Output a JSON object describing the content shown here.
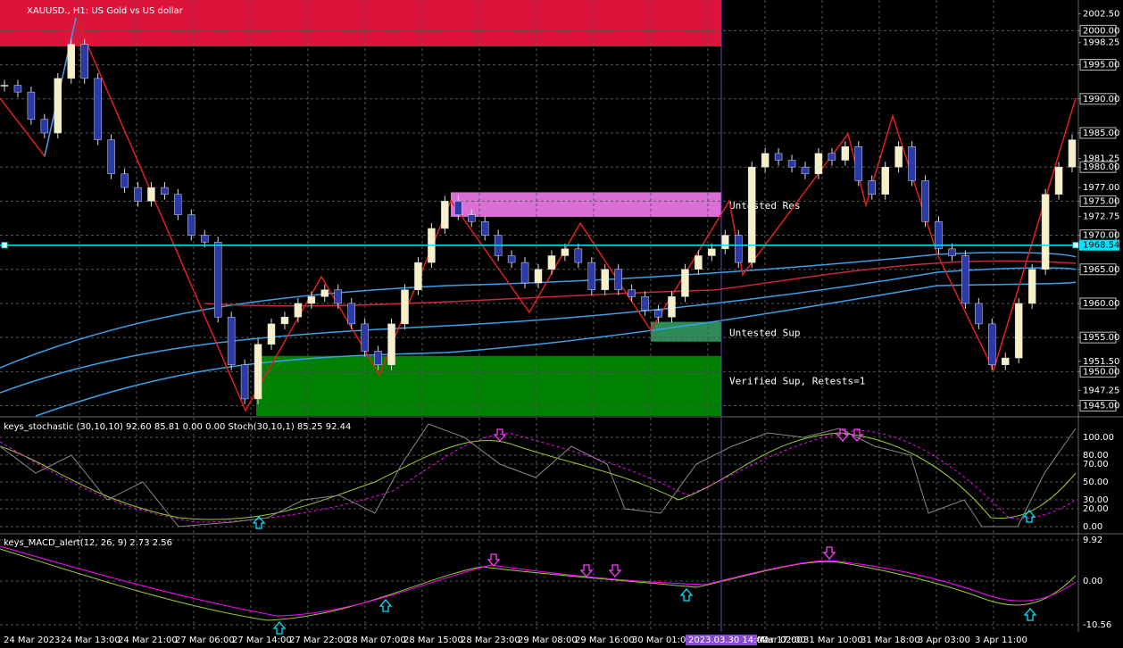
{
  "chart_data": {
    "type": "candlestick",
    "title": "XAUUSD., H1: US Gold vs US dollar",
    "closes": [
      1992,
      1991,
      1987,
      1985,
      1993,
      1998,
      1993,
      1984,
      1979,
      1977,
      1975,
      1977,
      1976,
      1973,
      1970,
      1969,
      1958,
      1951,
      1946,
      1954,
      1957,
      1958,
      1960,
      1961,
      1962,
      1960,
      1957,
      1953,
      1951,
      1957,
      1962,
      1966,
      1971,
      1975,
      1973,
      1972,
      1970,
      1967,
      1966,
      1963,
      1965,
      1967,
      1968,
      1966,
      1962,
      1965,
      1962,
      1961,
      1959,
      1958,
      1961,
      1965,
      1967,
      1968,
      1970,
      1966,
      1980,
      1982,
      1981,
      1980,
      1979,
      1982,
      1981,
      1983,
      1978,
      1976,
      1980,
      1983,
      1978,
      1972,
      1968,
      1967,
      1960,
      1957,
      1951,
      1952,
      1960,
      1965,
      1976,
      1980,
      1984
    ],
    "up_color": "#f5f0c8",
    "down_color": "#2a3aa8",
    "ylim": [
      1943.5,
      2004.5
    ],
    "yticks": [
      {
        "value": 2002.5,
        "label": "2002.50"
      },
      {
        "value": 2000,
        "label": "2000.00"
      },
      {
        "value": 1998.25,
        "label": "1998.25"
      },
      {
        "value": 1995,
        "label": "1995.00"
      },
      {
        "value": 1990,
        "label": "1990.00"
      },
      {
        "value": 1985,
        "label": "1985.00"
      },
      {
        "value": 1981.25,
        "label": "1981.25"
      },
      {
        "value": 1980,
        "label": "1980.00"
      },
      {
        "value": 1977,
        "label": "1977.00"
      },
      {
        "value": 1975,
        "label": "1975.00"
      },
      {
        "value": 1972.75,
        "label": "1972.75"
      },
      {
        "value": 1970,
        "label": "1970.00"
      },
      {
        "value": 1965,
        "label": "1965.00"
      },
      {
        "value": 1960,
        "label": "1960.00"
      },
      {
        "value": 1955,
        "label": "1955.00"
      },
      {
        "value": 1951.5,
        "label": "1951.50"
      },
      {
        "value": 1950,
        "label": "1950.00"
      },
      {
        "value": 1947.25,
        "label": "1947.25"
      },
      {
        "value": 1945,
        "label": "1945.00"
      }
    ],
    "current_price": {
      "value": 1968.54,
      "label": "1968.54"
    },
    "zones": [
      {
        "top": 2004.5,
        "bottom": 1997.7,
        "color": "#dc143c"
      },
      {
        "label": "Untested Res",
        "top": 1976.3,
        "bottom": 1972.7,
        "color": "#da70d6"
      },
      {
        "label": "Untested Sup",
        "top": 1957.3,
        "bottom": 1954.4,
        "color": "#2e8b57"
      },
      {
        "label": "Verified Sup, Retests=1",
        "top": 1952.3,
        "bottom": 1943.5,
        "color": "#008000"
      }
    ],
    "x_labels": [
      "24 Mar 2023",
      "24 Mar 13:00",
      "24 Mar 21:00",
      "27 Mar 06:00",
      "27 Mar 14:00",
      "27 Mar 22:00",
      "28 Mar 07:00",
      "28 Mar 15:00",
      "28 Mar 23:00",
      "29 Mar 08:00",
      "29 Mar 16:00",
      "30 Mar 01:00",
      "Mar 17:00",
      "31 Mar 02:00",
      "31 Mar 10:00",
      "31 Mar 18:00",
      "3 Apr 03:00",
      "3 Apr 11:00"
    ],
    "crosshair_label": "2023.03.30 14:00",
    "stoch": {
      "title": "keys_stochastic (30,10,10) 92.60 85.81 0.00 0.00 Stoch(30,10,1) 85.25 92.44",
      "ylim": [
        0,
        100
      ],
      "yticks": [
        {
          "value": 100,
          "label": "100.00"
        },
        {
          "value": 80,
          "label": "80.00"
        },
        {
          "value": 70,
          "label": "70.00"
        },
        {
          "value": 50,
          "label": "50.00"
        },
        {
          "value": 30,
          "label": "30.00"
        },
        {
          "value": 20,
          "label": "20.00"
        },
        {
          "value": 0,
          "label": "0.00"
        }
      ]
    },
    "macd": {
      "title": "keys_MACD_alert(12, 26, 9) 2.73 2.56",
      "ylim": [
        -10.56,
        9.92
      ],
      "yticks": [
        {
          "value": 9.92,
          "label": "9.92"
        },
        {
          "value": 0,
          "label": "0.00"
        },
        {
          "value": -10.56,
          "label": "-10.56"
        }
      ]
    }
  }
}
